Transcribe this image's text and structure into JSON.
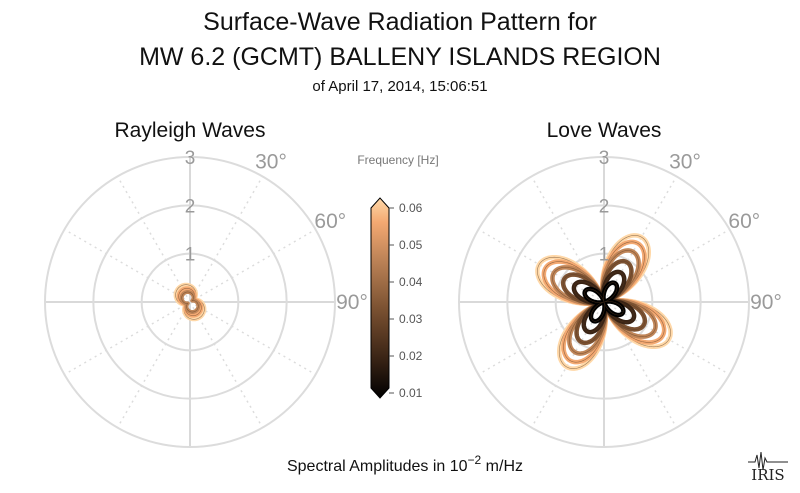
{
  "header": {
    "title_line1": "Surface-Wave Radiation Pattern for",
    "title_line2": "MW 6.2 (GCMT) BALLENY ISLANDS REGION",
    "subtitle": "of April 17, 2014, 15:06:51"
  },
  "footer": {
    "prefix": "Spectral Amplitudes in ",
    "base": "10",
    "exponent": "−2",
    "unit": " m/Hz"
  },
  "logo": {
    "text": "IRIS"
  },
  "colorbar": {
    "label": "Frequency [Hz]",
    "ticks": [
      "0.06",
      "0.05",
      "0.04",
      "0.03",
      "0.02",
      "0.01"
    ],
    "range": [
      0.01,
      0.06
    ],
    "colors": [
      "#000000",
      "#3a2415",
      "#7c5232",
      "#bf8558",
      "#f4a972",
      "#ffd8a8"
    ]
  },
  "chart_data": [
    {
      "type": "polar",
      "title": "Rayleigh Waves",
      "r_ticks": [
        "1",
        "2",
        "3"
      ],
      "r_max": 3,
      "angle_ticks": [
        "30°",
        "60°",
        "90°"
      ],
      "grid": true,
      "series": [
        {
          "frequency": 0.06,
          "shape": "two-lobe",
          "amplitude": 0.38,
          "lobe_axis_deg": 150,
          "color": "#ffd8a8"
        },
        {
          "frequency": 0.05,
          "shape": "two-lobe",
          "amplitude": 0.3,
          "lobe_axis_deg": 150,
          "color": "#f4a972"
        },
        {
          "frequency": 0.04,
          "shape": "two-lobe",
          "amplitude": 0.22,
          "lobe_axis_deg": 150,
          "color": "#bf8558"
        }
      ]
    },
    {
      "type": "polar",
      "title": "Love Waves",
      "r_ticks": [
        "1",
        "2",
        "3"
      ],
      "r_max": 3,
      "angle_ticks": [
        "30°",
        "60°",
        "90°"
      ],
      "grid": true,
      "series": [
        {
          "frequency": 0.06,
          "shape": "four-lobe",
          "amplitude": 1.55,
          "lobe_axis_deg": 30,
          "color": "#ffd8a8"
        },
        {
          "frequency": 0.05,
          "shape": "four-lobe",
          "amplitude": 1.4,
          "lobe_axis_deg": 30,
          "color": "#f4a972"
        },
        {
          "frequency": 0.04,
          "shape": "four-lobe",
          "amplitude": 1.2,
          "lobe_axis_deg": 30,
          "color": "#bf8558"
        },
        {
          "frequency": 0.03,
          "shape": "four-lobe",
          "amplitude": 0.95,
          "lobe_axis_deg": 30,
          "color": "#7c5232"
        },
        {
          "frequency": 0.02,
          "shape": "four-lobe",
          "amplitude": 0.7,
          "lobe_axis_deg": 30,
          "color": "#3a2415"
        },
        {
          "frequency": 0.01,
          "shape": "four-lobe",
          "amplitude": 0.45,
          "lobe_axis_deg": 30,
          "color": "#000000"
        }
      ]
    }
  ]
}
